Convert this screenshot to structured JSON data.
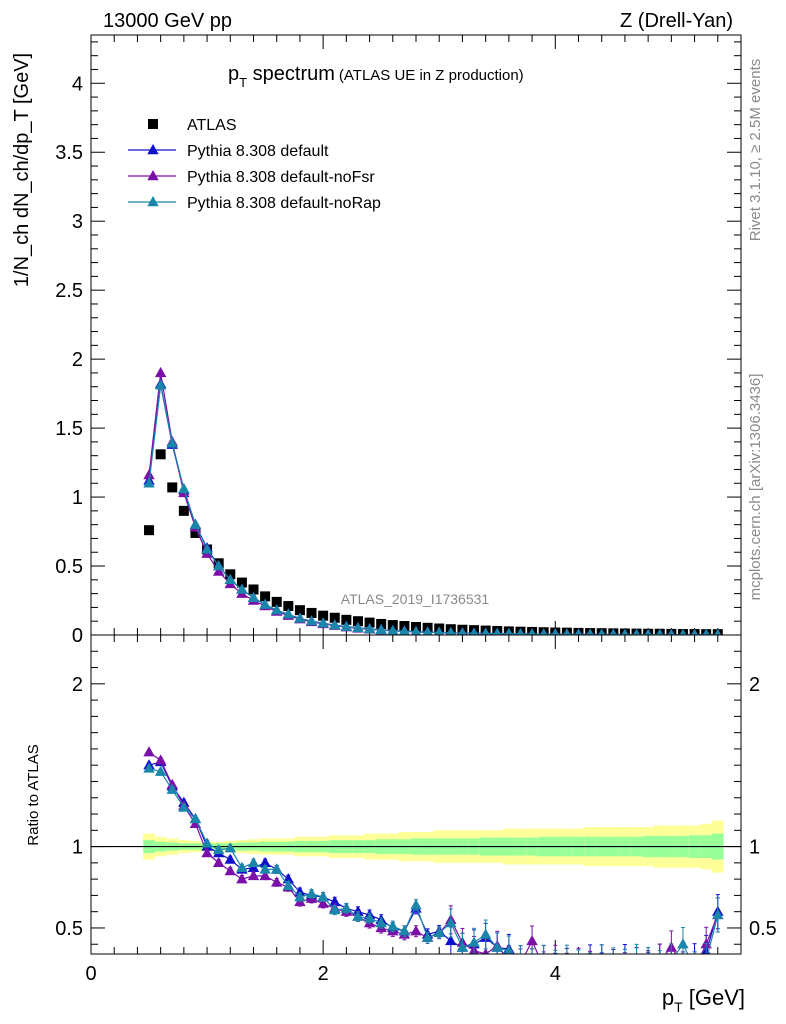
{
  "header": {
    "left": "13000 GeV pp",
    "right": "Z (Drell-Yan)"
  },
  "side_text": {
    "top": "Rivet 3.1.10, ≥ 2.5M events",
    "bottom": "mcplots.cern.ch [arXiv:1306.3436]"
  },
  "watermark": "ATLAS_2019_I1736531",
  "colors": {
    "data": "#000000",
    "default": "#1010cc",
    "noFsr": "#7a10a8",
    "noRap": "#1a86aa",
    "band_inner": "#99ff99",
    "band_outer": "#ffff99"
  },
  "chart_data": [
    {
      "type": "scatter",
      "title_main": "p",
      "title_sub": "T",
      "title_rest": " spectrum",
      "title_note": "(ATLAS UE in Z production)",
      "ylabel": "1/N_ch dN_ch/dp_T [GeV]",
      "xlim": [
        0,
        5.6
      ],
      "ylim": [
        0,
        4.35
      ],
      "yticks": [
        "0",
        "0.5",
        "1",
        "1.5",
        "2",
        "2.5",
        "3",
        "3.5",
        "4"
      ],
      "yticks_values": [
        0,
        0.5,
        1,
        1.5,
        2,
        2.5,
        3,
        3.5,
        4
      ],
      "legend_position": "top-left",
      "x": [
        0.5,
        0.6,
        0.7,
        0.8,
        0.9,
        1.0,
        1.1,
        1.2,
        1.3,
        1.4,
        1.5,
        1.6,
        1.7,
        1.8,
        1.9,
        2.0,
        2.1,
        2.2,
        2.3,
        2.4,
        2.5,
        2.6,
        2.7,
        2.8,
        2.9,
        3.0,
        3.1,
        3.2,
        3.3,
        3.4,
        3.5,
        3.6,
        3.7,
        3.8,
        3.9,
        4.0,
        4.1,
        4.2,
        4.3,
        4.4,
        4.5,
        4.6,
        4.7,
        4.8,
        4.9,
        5.0,
        5.1,
        5.2,
        5.3,
        5.4
      ],
      "series": [
        {
          "name": "ATLAS",
          "marker": "square",
          "values": [
            0.76,
            1.31,
            1.07,
            0.9,
            0.74,
            0.62,
            0.52,
            0.44,
            0.38,
            0.33,
            0.28,
            0.24,
            0.21,
            0.18,
            0.16,
            0.14,
            0.125,
            0.11,
            0.1,
            0.09,
            0.08,
            0.072,
            0.065,
            0.058,
            0.052,
            0.047,
            0.042,
            0.038,
            0.035,
            0.032,
            0.029,
            0.026,
            0.024,
            0.022,
            0.02,
            0.018,
            0.017,
            0.015,
            0.014,
            0.013,
            0.012,
            0.011,
            0.01,
            0.009,
            0.009,
            0.008,
            0.007,
            0.007,
            0.006,
            0.006
          ]
        },
        {
          "name": "Pythia 8.308 default",
          "marker": "triangle",
          "values": [
            1.12,
            1.82,
            1.38,
            1.05,
            0.8,
            0.63,
            0.5,
            0.4,
            0.33,
            0.27,
            0.22,
            0.18,
            0.15,
            0.12,
            0.1,
            0.085,
            0.072,
            0.061,
            0.052,
            0.044,
            0.038,
            0.032,
            0.028,
            0.024,
            0.021,
            0.018,
            0.016,
            0.014,
            0.012,
            0.011,
            0.01,
            0.009,
            0.008,
            0.007,
            0.006,
            0.006,
            0.005,
            0.005,
            0.004,
            0.004,
            0.004,
            0.003,
            0.003,
            0.003,
            0.003,
            0.002,
            0.002,
            0.002,
            0.002,
            0.002
          ]
        },
        {
          "name": "Pythia 8.308 default-noFsr",
          "marker": "triangle",
          "values": [
            1.16,
            1.9,
            1.4,
            1.03,
            0.78,
            0.59,
            0.46,
            0.37,
            0.3,
            0.25,
            0.21,
            0.17,
            0.14,
            0.115,
            0.095,
            0.08,
            0.068,
            0.057,
            0.048,
            0.041,
            0.035,
            0.03,
            0.026,
            0.022,
            0.019,
            0.017,
            0.015,
            0.013,
            0.011,
            0.01,
            0.009,
            0.008,
            0.007,
            0.006,
            0.006,
            0.005,
            0.005,
            0.004,
            0.004,
            0.003,
            0.003,
            0.003,
            0.003,
            0.002,
            0.002,
            0.002,
            0.002,
            0.002,
            0.002,
            0.002
          ]
        },
        {
          "name": "Pythia 8.308 default-noRap",
          "marker": "triangle",
          "values": [
            1.1,
            1.81,
            1.39,
            1.06,
            0.8,
            0.62,
            0.5,
            0.4,
            0.33,
            0.27,
            0.22,
            0.18,
            0.15,
            0.12,
            0.1,
            0.085,
            0.071,
            0.06,
            0.051,
            0.043,
            0.037,
            0.031,
            0.027,
            0.023,
            0.02,
            0.018,
            0.016,
            0.014,
            0.012,
            0.011,
            0.01,
            0.009,
            0.008,
            0.007,
            0.006,
            0.006,
            0.005,
            0.005,
            0.004,
            0.004,
            0.004,
            0.003,
            0.003,
            0.003,
            0.003,
            0.002,
            0.002,
            0.002,
            0.002,
            0.002
          ]
        }
      ]
    },
    {
      "type": "line",
      "ylabel": "Ratio to ATLAS",
      "xlabel_main": "p",
      "xlabel_sub": "T",
      "xlabel_rest": " [GeV]",
      "xlim": [
        0,
        5.6
      ],
      "ylim": [
        0.34,
        2.3
      ],
      "xticks": [
        "0",
        "2",
        "4"
      ],
      "xticks_values": [
        0,
        2,
        4
      ],
      "yticks": [
        "0.5",
        "1",
        "2"
      ],
      "yticks_values": [
        0.5,
        1,
        2
      ],
      "x": [
        0.5,
        0.6,
        0.7,
        0.8,
        0.9,
        1.0,
        1.1,
        1.2,
        1.3,
        1.4,
        1.5,
        1.6,
        1.7,
        1.8,
        1.9,
        2.0,
        2.1,
        2.2,
        2.3,
        2.4,
        2.5,
        2.6,
        2.7,
        2.8,
        2.9,
        3.0,
        3.1,
        3.2,
        3.3,
        3.4,
        3.5,
        3.6,
        3.7,
        3.8,
        3.9,
        4.0,
        4.1,
        4.2,
        4.3,
        4.4,
        4.5,
        4.6,
        4.7,
        4.8,
        4.9,
        5.0,
        5.1,
        5.2,
        5.3,
        5.4
      ],
      "band_inner": [
        0.04,
        0.03,
        0.025,
        0.02,
        0.02,
        0.02,
        0.02,
        0.02,
        0.025,
        0.025,
        0.03,
        0.03,
        0.03,
        0.035,
        0.035,
        0.035,
        0.04,
        0.04,
        0.04,
        0.04,
        0.045,
        0.045,
        0.045,
        0.05,
        0.05,
        0.05,
        0.05,
        0.05,
        0.05,
        0.055,
        0.055,
        0.055,
        0.055,
        0.055,
        0.06,
        0.06,
        0.06,
        0.06,
        0.06,
        0.06,
        0.06,
        0.06,
        0.06,
        0.065,
        0.065,
        0.065,
        0.065,
        0.07,
        0.07,
        0.08
      ],
      "band_outer": [
        0.08,
        0.06,
        0.05,
        0.04,
        0.035,
        0.03,
        0.03,
        0.035,
        0.04,
        0.045,
        0.05,
        0.05,
        0.05,
        0.06,
        0.06,
        0.06,
        0.07,
        0.07,
        0.07,
        0.08,
        0.08,
        0.08,
        0.09,
        0.09,
        0.09,
        0.1,
        0.1,
        0.1,
        0.1,
        0.1,
        0.1,
        0.11,
        0.11,
        0.11,
        0.11,
        0.11,
        0.11,
        0.11,
        0.12,
        0.12,
        0.12,
        0.12,
        0.12,
        0.12,
        0.13,
        0.13,
        0.13,
        0.13,
        0.14,
        0.16
      ],
      "series": [
        {
          "name": "Pythia 8.308 default",
          "values": [
            1.5,
            1.52,
            1.37,
            1.27,
            1.17,
            1.0,
            0.96,
            0.92,
            0.86,
            0.87,
            0.9,
            0.86,
            0.8,
            0.72,
            0.7,
            0.69,
            0.66,
            0.62,
            0.6,
            0.58,
            0.55,
            0.5,
            0.48,
            0.62,
            0.46,
            0.48,
            0.42,
            0.38,
            0.4,
            0.44,
            0.38,
            0.37,
            0.3,
            0.28,
            0.3,
            0.25,
            0.28,
            0.27,
            0.3,
            0.25,
            0.27,
            0.3,
            0.28,
            0.25,
            0.3,
            0.27,
            0.25,
            0.3,
            0.35,
            0.6
          ]
        },
        {
          "name": "Pythia 8.308 default-noFsr",
          "values": [
            1.58,
            1.53,
            1.38,
            1.25,
            1.14,
            0.96,
            0.9,
            0.85,
            0.8,
            0.82,
            0.82,
            0.78,
            0.75,
            0.66,
            0.68,
            0.65,
            0.62,
            0.6,
            0.57,
            0.53,
            0.5,
            0.48,
            0.46,
            0.48,
            0.44,
            0.47,
            0.55,
            0.41,
            0.36,
            0.34,
            0.39,
            0.3,
            0.28,
            0.42,
            0.26,
            0.3,
            0.25,
            0.28,
            0.26,
            0.3,
            0.27,
            0.25,
            0.28,
            0.26,
            0.3,
            0.38,
            0.28,
            0.25,
            0.4,
            0.58
          ]
        },
        {
          "name": "Pythia 8.308 default-noRap",
          "values": [
            1.48,
            1.46,
            1.35,
            1.24,
            1.17,
            1.02,
            0.98,
            0.99,
            0.87,
            0.9,
            0.86,
            0.86,
            0.76,
            0.69,
            0.71,
            0.69,
            0.61,
            0.62,
            0.57,
            0.56,
            0.53,
            0.51,
            0.48,
            0.64,
            0.44,
            0.47,
            0.53,
            0.38,
            0.41,
            0.46,
            0.38,
            0.36,
            0.3,
            0.28,
            0.3,
            0.27,
            0.3,
            0.27,
            0.25,
            0.3,
            0.28,
            0.27,
            0.3,
            0.28,
            0.26,
            0.3,
            0.4,
            0.25,
            0.3,
            0.58
          ]
        }
      ]
    }
  ]
}
